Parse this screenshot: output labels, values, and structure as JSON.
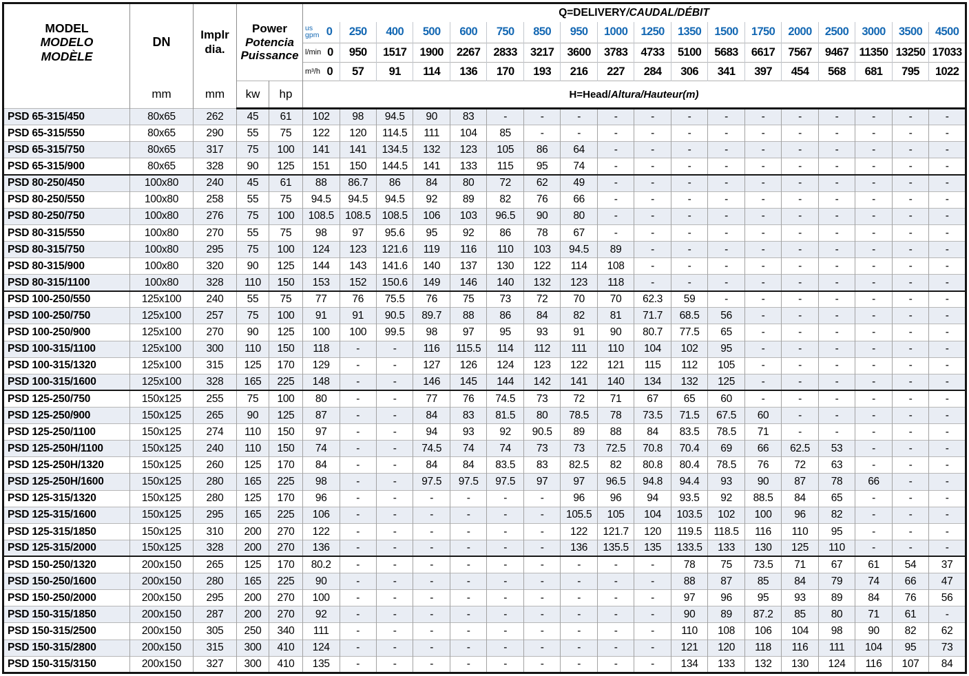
{
  "header": {
    "model": [
      "MODEL",
      "MODELO",
      "MODÈLE"
    ],
    "dn": "DN",
    "impeller": [
      "Implr",
      "dia."
    ],
    "power": [
      "Power",
      "Potencia",
      "Puissance"
    ],
    "units": {
      "dn": "mm",
      "impeller": "mm",
      "kw": "kw",
      "hp": "hp"
    },
    "q_title": {
      "en": "Q=DELIVERY",
      "rest": "/CAUDAL/DÉBIT"
    },
    "h_title": {
      "en": "H=Head/",
      "rest": "Altura/Hauteur",
      "unit": "(m)"
    },
    "flow_rows": [
      {
        "label_lines": [
          "us",
          "gpm"
        ],
        "unit": "us gpm",
        "values": [
          "0",
          "250",
          "400",
          "500",
          "600",
          "750",
          "850",
          "950",
          "1000",
          "1250",
          "1350",
          "1500",
          "1750",
          "2000",
          "2500",
          "3000",
          "3500",
          "4500"
        ]
      },
      {
        "label_lines": [
          "l/min"
        ],
        "unit": "l/min",
        "values": [
          "0",
          "950",
          "1517",
          "1900",
          "2267",
          "2833",
          "3217",
          "3600",
          "3783",
          "4733",
          "5100",
          "5683",
          "6617",
          "7567",
          "9467",
          "11350",
          "13250",
          "17033"
        ]
      },
      {
        "label_lines": [
          "m³/h"
        ],
        "unit": "m³/h",
        "values": [
          "0",
          "57",
          "91",
          "114",
          "136",
          "170",
          "193",
          "216",
          "227",
          "284",
          "306",
          "341",
          "397",
          "454",
          "568",
          "681",
          "795",
          "1022"
        ]
      }
    ]
  },
  "colors": {
    "accent_blue": "#1468b3",
    "row_shade": "#e9edf4",
    "text": "#262223",
    "grid_dark": "#141414",
    "grid_light": "#a2a2a2"
  },
  "group_start_indexes": [
    4,
    11,
    17,
    27
  ],
  "rows": [
    {
      "model": "PSD 65-315/450",
      "dn": "80x65",
      "dia": "262",
      "kw": "45",
      "hp": "61",
      "heads": [
        "102",
        "98",
        "94.5",
        "90",
        "83",
        "-",
        "-",
        "-",
        "-",
        "-",
        "-",
        "-",
        "-",
        "-",
        "-",
        "-",
        "-",
        "-"
      ]
    },
    {
      "model": "PSD 65-315/550",
      "dn": "80x65",
      "dia": "290",
      "kw": "55",
      "hp": "75",
      "heads": [
        "122",
        "120",
        "114.5",
        "111",
        "104",
        "85",
        "-",
        "-",
        "-",
        "-",
        "-",
        "-",
        "-",
        "-",
        "-",
        "-",
        "-",
        "-"
      ]
    },
    {
      "model": "PSD 65-315/750",
      "dn": "80x65",
      "dia": "317",
      "kw": "75",
      "hp": "100",
      "heads": [
        "141",
        "141",
        "134.5",
        "132",
        "123",
        "105",
        "86",
        "64",
        "-",
        "-",
        "-",
        "-",
        "-",
        "-",
        "-",
        "-",
        "-",
        "-"
      ]
    },
    {
      "model": "PSD 65-315/900",
      "dn": "80x65",
      "dia": "328",
      "kw": "90",
      "hp": "125",
      "heads": [
        "151",
        "150",
        "144.5",
        "141",
        "133",
        "115",
        "95",
        "74",
        "-",
        "-",
        "-",
        "-",
        "-",
        "-",
        "-",
        "-",
        "-",
        "-"
      ]
    },
    {
      "model": "PSD 80-250/450",
      "dn": "100x80",
      "dia": "240",
      "kw": "45",
      "hp": "61",
      "heads": [
        "88",
        "86.7",
        "86",
        "84",
        "80",
        "72",
        "62",
        "49",
        "-",
        "-",
        "-",
        "-",
        "-",
        "-",
        "-",
        "-",
        "-",
        "-"
      ]
    },
    {
      "model": "PSD 80-250/550",
      "dn": "100x80",
      "dia": "258",
      "kw": "55",
      "hp": "75",
      "heads": [
        "94.5",
        "94.5",
        "94.5",
        "92",
        "89",
        "82",
        "76",
        "66",
        "-",
        "-",
        "-",
        "-",
        "-",
        "-",
        "-",
        "-",
        "-",
        "-"
      ]
    },
    {
      "model": "PSD 80-250/750",
      "dn": "100x80",
      "dia": "276",
      "kw": "75",
      "hp": "100",
      "heads": [
        "108.5",
        "108.5",
        "108.5",
        "106",
        "103",
        "96.5",
        "90",
        "80",
        "-",
        "-",
        "-",
        "-",
        "-",
        "-",
        "-",
        "-",
        "-",
        "-"
      ]
    },
    {
      "model": "PSD 80-315/550",
      "dn": "100x80",
      "dia": "270",
      "kw": "55",
      "hp": "75",
      "heads": [
        "98",
        "97",
        "95.6",
        "95",
        "92",
        "86",
        "78",
        "67",
        "-",
        "-",
        "-",
        "-",
        "-",
        "-",
        "-",
        "-",
        "-",
        "-"
      ]
    },
    {
      "model": "PSD 80-315/750",
      "dn": "100x80",
      "dia": "295",
      "kw": "75",
      "hp": "100",
      "heads": [
        "124",
        "123",
        "121.6",
        "119",
        "116",
        "110",
        "103",
        "94.5",
        "89",
        "-",
        "-",
        "-",
        "-",
        "-",
        "-",
        "-",
        "-",
        "-"
      ]
    },
    {
      "model": "PSD 80-315/900",
      "dn": "100x80",
      "dia": "320",
      "kw": "90",
      "hp": "125",
      "heads": [
        "144",
        "143",
        "141.6",
        "140",
        "137",
        "130",
        "122",
        "114",
        "108",
        "-",
        "-",
        "-",
        "-",
        "-",
        "-",
        "-",
        "-",
        "-"
      ]
    },
    {
      "model": "PSD 80-315/1100",
      "dn": "100x80",
      "dia": "328",
      "kw": "110",
      "hp": "150",
      "heads": [
        "153",
        "152",
        "150.6",
        "149",
        "146",
        "140",
        "132",
        "123",
        "118",
        "-",
        "-",
        "-",
        "-",
        "-",
        "-",
        "-",
        "-",
        "-"
      ]
    },
    {
      "model": "PSD 100-250/550",
      "dn": "125x100",
      "dia": "240",
      "kw": "55",
      "hp": "75",
      "heads": [
        "77",
        "76",
        "75.5",
        "76",
        "75",
        "73",
        "72",
        "70",
        "70",
        "62.3",
        "59",
        "-",
        "-",
        "-",
        "-",
        "-",
        "-",
        "-"
      ]
    },
    {
      "model": "PSD 100-250/750",
      "dn": "125x100",
      "dia": "257",
      "kw": "75",
      "hp": "100",
      "heads": [
        "91",
        "91",
        "90.5",
        "89.7",
        "88",
        "86",
        "84",
        "82",
        "81",
        "71.7",
        "68.5",
        "56",
        "-",
        "-",
        "-",
        "-",
        "-",
        "-"
      ]
    },
    {
      "model": "PSD 100-250/900",
      "dn": "125x100",
      "dia": "270",
      "kw": "90",
      "hp": "125",
      "heads": [
        "100",
        "100",
        "99.5",
        "98",
        "97",
        "95",
        "93",
        "91",
        "90",
        "80.7",
        "77.5",
        "65",
        "-",
        "-",
        "-",
        "-",
        "-",
        "-"
      ]
    },
    {
      "model": "PSD 100-315/1100",
      "dn": "125x100",
      "dia": "300",
      "kw": "110",
      "hp": "150",
      "heads": [
        "118",
        "-",
        "-",
        "116",
        "115.5",
        "114",
        "112",
        "111",
        "110",
        "104",
        "102",
        "95",
        "-",
        "-",
        "-",
        "-",
        "-",
        "-"
      ]
    },
    {
      "model": "PSD 100-315/1320",
      "dn": "125x100",
      "dia": "315",
      "kw": "125",
      "hp": "170",
      "heads": [
        "129",
        "-",
        "-",
        "127",
        "126",
        "124",
        "123",
        "122",
        "121",
        "115",
        "112",
        "105",
        "-",
        "-",
        "-",
        "-",
        "-",
        "-"
      ]
    },
    {
      "model": "PSD 100-315/1600",
      "dn": "125x100",
      "dia": "328",
      "kw": "165",
      "hp": "225",
      "heads": [
        "148",
        "-",
        "-",
        "146",
        "145",
        "144",
        "142",
        "141",
        "140",
        "134",
        "132",
        "125",
        "-",
        "-",
        "-",
        "-",
        "-",
        "-"
      ]
    },
    {
      "model": "PSD 125-250/750",
      "dn": "150x125",
      "dia": "255",
      "kw": "75",
      "hp": "100",
      "heads": [
        "80",
        "-",
        "-",
        "77",
        "76",
        "74.5",
        "73",
        "72",
        "71",
        "67",
        "65",
        "60",
        "-",
        "-",
        "-",
        "-",
        "-",
        "-"
      ]
    },
    {
      "model": "PSD 125-250/900",
      "dn": "150x125",
      "dia": "265",
      "kw": "90",
      "hp": "125",
      "heads": [
        "87",
        "-",
        "-",
        "84",
        "83",
        "81.5",
        "80",
        "78.5",
        "78",
        "73.5",
        "71.5",
        "67.5",
        "60",
        "-",
        "-",
        "-",
        "-",
        "-"
      ]
    },
    {
      "model": "PSD 125-250/1100",
      "dn": "150x125",
      "dia": "274",
      "kw": "110",
      "hp": "150",
      "heads": [
        "97",
        "-",
        "-",
        "94",
        "93",
        "92",
        "90.5",
        "89",
        "88",
        "84",
        "83.5",
        "78.5",
        "71",
        "-",
        "-",
        "-",
        "-",
        "-"
      ]
    },
    {
      "model": "PSD 125-250H/1100",
      "dn": "150x125",
      "dia": "240",
      "kw": "110",
      "hp": "150",
      "heads": [
        "74",
        "-",
        "-",
        "74.5",
        "74",
        "74",
        "73",
        "73",
        "72.5",
        "70.8",
        "70.4",
        "69",
        "66",
        "62.5",
        "53",
        "-",
        "-",
        "-"
      ]
    },
    {
      "model": "PSD 125-250H/1320",
      "dn": "150x125",
      "dia": "260",
      "kw": "125",
      "hp": "170",
      "heads": [
        "84",
        "-",
        "-",
        "84",
        "84",
        "83.5",
        "83",
        "82.5",
        "82",
        "80.8",
        "80.4",
        "78.5",
        "76",
        "72",
        "63",
        "-",
        "-",
        "-"
      ]
    },
    {
      "model": "PSD 125-250H/1600",
      "dn": "150x125",
      "dia": "280",
      "kw": "165",
      "hp": "225",
      "heads": [
        "98",
        "-",
        "-",
        "97.5",
        "97.5",
        "97.5",
        "97",
        "97",
        "96.5",
        "94.8",
        "94.4",
        "93",
        "90",
        "87",
        "78",
        "66",
        "-",
        "-"
      ]
    },
    {
      "model": "PSD 125-315/1320",
      "dn": "150x125",
      "dia": "280",
      "kw": "125",
      "hp": "170",
      "heads": [
        "96",
        "-",
        "-",
        "-",
        "-",
        "-",
        "-",
        "96",
        "96",
        "94",
        "93.5",
        "92",
        "88.5",
        "84",
        "65",
        "-",
        "-",
        "-"
      ]
    },
    {
      "model": "PSD 125-315/1600",
      "dn": "150x125",
      "dia": "295",
      "kw": "165",
      "hp": "225",
      "heads": [
        "106",
        "-",
        "-",
        "-",
        "-",
        "-",
        "-",
        "105.5",
        "105",
        "104",
        "103.5",
        "102",
        "100",
        "96",
        "82",
        "-",
        "-",
        "-"
      ]
    },
    {
      "model": "PSD 125-315/1850",
      "dn": "150x125",
      "dia": "310",
      "kw": "200",
      "hp": "270",
      "heads": [
        "122",
        "-",
        "-",
        "-",
        "-",
        "-",
        "-",
        "122",
        "121.7",
        "120",
        "119.5",
        "118.5",
        "116",
        "110",
        "95",
        "-",
        "-",
        "-"
      ]
    },
    {
      "model": "PSD 125-315/2000",
      "dn": "150x125",
      "dia": "328",
      "kw": "200",
      "hp": "270",
      "heads": [
        "136",
        "-",
        "-",
        "-",
        "-",
        "-",
        "-",
        "136",
        "135.5",
        "135",
        "133.5",
        "133",
        "130",
        "125",
        "110",
        "-",
        "-",
        "-"
      ]
    },
    {
      "model": "PSD 150-250/1320",
      "dn": "200x150",
      "dia": "265",
      "kw": "125",
      "hp": "170",
      "heads": [
        "80.2",
        "-",
        "-",
        "-",
        "-",
        "-",
        "-",
        "-",
        "-",
        "-",
        "78",
        "75",
        "73.5",
        "71",
        "67",
        "61",
        "54",
        "37"
      ]
    },
    {
      "model": "PSD 150-250/1600",
      "dn": "200x150",
      "dia": "280",
      "kw": "165",
      "hp": "225",
      "heads": [
        "90",
        "-",
        "-",
        "-",
        "-",
        "-",
        "-",
        "-",
        "-",
        "-",
        "88",
        "87",
        "85",
        "84",
        "79",
        "74",
        "66",
        "47"
      ]
    },
    {
      "model": "PSD 150-250/2000",
      "dn": "200x150",
      "dia": "295",
      "kw": "200",
      "hp": "270",
      "heads": [
        "100",
        "-",
        "-",
        "-",
        "-",
        "-",
        "-",
        "-",
        "-",
        "-",
        "97",
        "96",
        "95",
        "93",
        "89",
        "84",
        "76",
        "56"
      ]
    },
    {
      "model": "PSD 150-315/1850",
      "dn": "200x150",
      "dia": "287",
      "kw": "200",
      "hp": "270",
      "heads": [
        "92",
        "-",
        "-",
        "-",
        "-",
        "-",
        "-",
        "-",
        "-",
        "-",
        "90",
        "89",
        "87.2",
        "85",
        "80",
        "71",
        "61",
        "-"
      ]
    },
    {
      "model": "PSD 150-315/2500",
      "dn": "200x150",
      "dia": "305",
      "kw": "250",
      "hp": "340",
      "heads": [
        "111",
        "-",
        "-",
        "-",
        "-",
        "-",
        "-",
        "-",
        "-",
        "-",
        "110",
        "108",
        "106",
        "104",
        "98",
        "90",
        "82",
        "62"
      ]
    },
    {
      "model": "PSD 150-315/2800",
      "dn": "200x150",
      "dia": "315",
      "kw": "300",
      "hp": "410",
      "heads": [
        "124",
        "-",
        "-",
        "-",
        "-",
        "-",
        "-",
        "-",
        "-",
        "-",
        "121",
        "120",
        "118",
        "116",
        "111",
        "104",
        "95",
        "73"
      ]
    },
    {
      "model": "PSD 150-315/3150",
      "dn": "200x150",
      "dia": "327",
      "kw": "300",
      "hp": "410",
      "heads": [
        "135",
        "-",
        "-",
        "-",
        "-",
        "-",
        "-",
        "-",
        "-",
        "-",
        "134",
        "133",
        "132",
        "130",
        "124",
        "116",
        "107",
        "84"
      ]
    }
  ]
}
